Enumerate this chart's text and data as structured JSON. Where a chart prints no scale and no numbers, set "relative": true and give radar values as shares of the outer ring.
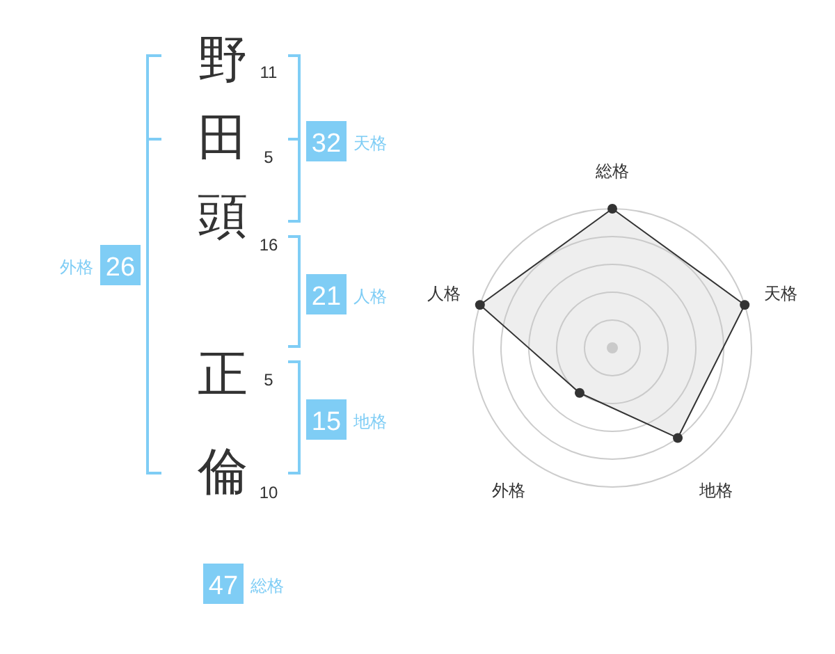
{
  "chart_data": [
    {
      "type": "other",
      "categories": [
        "野",
        "田",
        "頭",
        "正",
        "倫"
      ],
      "values": [
        11,
        5,
        16,
        5,
        10
      ],
      "data_labels": true,
      "annotations": [
        "32",
        "天格",
        "21",
        "人格",
        "15",
        "地格",
        "26",
        "外格",
        "47",
        "総格"
      ]
    },
    {
      "type": "radar",
      "categories": [
        "総格",
        "天格",
        "地格",
        "外格",
        "人格"
      ],
      "relative": true,
      "series": [
        {
          "color": "#333333",
          "values": [
            1,
            1,
            0.8,
            0.4,
            1
          ]
        }
      ],
      "marker": "circle"
    }
  ]
}
